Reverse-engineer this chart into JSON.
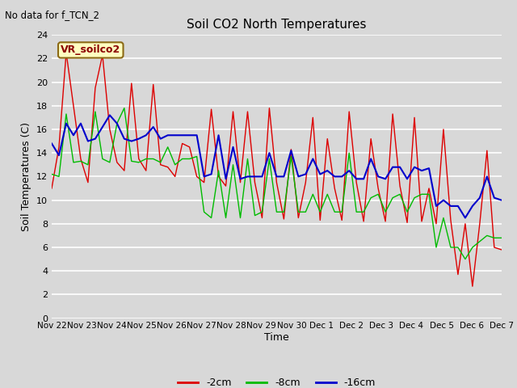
{
  "title": "Soil CO2 North Temperatures",
  "subtitle": "No data for f_TCN_2",
  "ylabel": "Soil Temperatures (C)",
  "xlabel": "Time",
  "sensor_label": "VR_soilco2",
  "ylim": [
    0,
    24
  ],
  "bg_color": "#d8d8d8",
  "plot_bg_color": "#d8d8d8",
  "xtick_labels": [
    "Nov 22",
    "Nov 23",
    "Nov 24",
    "Nov 25",
    "Nov 26",
    "Nov 27",
    "Nov 28",
    "Nov 29",
    "Nov 30",
    "Dec 1",
    "Dec 2",
    "Dec 3",
    "Dec 4",
    "Dec 5",
    "Dec 6",
    "Dec 7"
  ],
  "legend_labels": [
    "-2cm",
    "-8cm",
    "-16cm"
  ],
  "legend_colors": [
    "#dd0000",
    "#00bb00",
    "#0000cc"
  ],
  "line_colors": [
    "#dd0000",
    "#00bb00",
    "#0000cc"
  ],
  "t_2cm": [
    11.0,
    14.5,
    22.5,
    18.0,
    13.5,
    11.5,
    19.5,
    22.3,
    16.0,
    13.2,
    12.5,
    19.9,
    13.5,
    12.5,
    19.8,
    13.0,
    12.8,
    12.0,
    14.8,
    14.5,
    12.0,
    11.5,
    17.7,
    12.0,
    11.2,
    17.5,
    11.5,
    17.5,
    11.5,
    8.5,
    17.8,
    11.5,
    8.4,
    14.3,
    8.5,
    11.5,
    17.0,
    8.3,
    15.2,
    11.0,
    8.3,
    17.5,
    11.5,
    8.2,
    15.2,
    11.0,
    8.2,
    17.3,
    11.2,
    8.1,
    17.0,
    8.2,
    11.0,
    8.0,
    16.0,
    8.3,
    3.7,
    8.0,
    2.7,
    8.0,
    14.2,
    6.0,
    5.8
  ],
  "t_8cm": [
    12.2,
    12.0,
    17.3,
    13.2,
    13.3,
    13.0,
    17.5,
    13.5,
    13.2,
    16.5,
    17.8,
    13.3,
    13.2,
    13.5,
    13.5,
    13.2,
    14.5,
    13.0,
    13.5,
    13.5,
    13.7,
    9.0,
    8.5,
    12.5,
    8.5,
    13.0,
    8.5,
    13.5,
    8.7,
    9.0,
    13.5,
    9.0,
    9.0,
    13.7,
    9.0,
    9.0,
    10.5,
    9.0,
    10.5,
    9.0,
    9.0,
    14.0,
    9.0,
    9.0,
    10.2,
    10.5,
    9.0,
    10.2,
    10.5,
    9.0,
    10.2,
    10.5,
    10.5,
    6.0,
    8.5,
    6.0,
    6.0,
    5.0,
    6.0,
    6.5,
    7.0,
    6.8,
    6.8
  ],
  "t_16cm": [
    14.8,
    13.8,
    16.5,
    15.5,
    16.5,
    15.0,
    15.2,
    16.2,
    17.2,
    16.5,
    15.2,
    15.0,
    15.2,
    15.5,
    16.2,
    15.2,
    15.5,
    15.5,
    15.5,
    15.5,
    15.5,
    12.0,
    12.2,
    15.5,
    11.8,
    14.5,
    11.8,
    12.0,
    12.0,
    12.0,
    14.0,
    12.0,
    12.0,
    14.2,
    12.0,
    12.2,
    13.5,
    12.2,
    12.5,
    12.0,
    12.0,
    12.5,
    11.8,
    11.8,
    13.5,
    12.0,
    11.8,
    12.8,
    12.8,
    11.8,
    12.8,
    12.5,
    12.7,
    9.5,
    10.0,
    9.5,
    9.5,
    8.5,
    9.5,
    10.2,
    12.0,
    10.2,
    10.0
  ]
}
